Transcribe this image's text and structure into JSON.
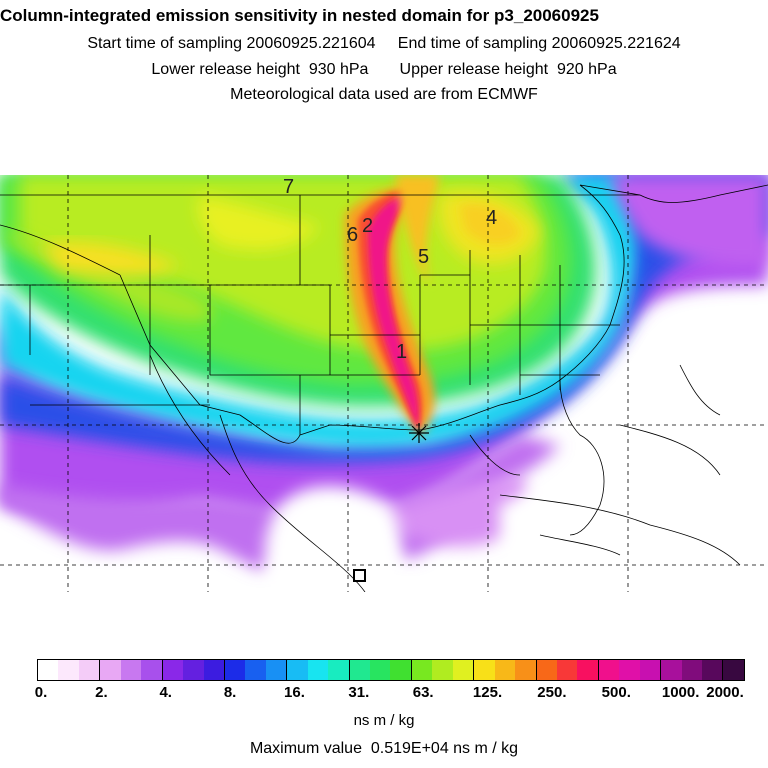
{
  "header": {
    "title": "Column-integrated emission sensitivity in nested domain for p3_20060925",
    "line1": "Start time of sampling 20060925.221604     End time of sampling 20060925.221624",
    "line2": "Lower release height  930 hPa       Upper release height  920 hPa",
    "line3": "Meteorological data used are from ECMWF"
  },
  "map": {
    "labels": [
      "7",
      "6",
      "2",
      "4",
      "5",
      "1"
    ],
    "release_marker": "star-marker",
    "receptor_marker": "square-marker"
  },
  "colorbar": {
    "colors": [
      "#ffffff",
      "#fce8fc",
      "#f4ccf8",
      "#e8a8f4",
      "#c878f0",
      "#a850ec",
      "#8a28e8",
      "#6420e0",
      "#3c1ce0",
      "#1c2ce8",
      "#1860f0",
      "#1890f4",
      "#18bcf4",
      "#18e4f0",
      "#18ecc0",
      "#20e890",
      "#28e460",
      "#40e030",
      "#78e820",
      "#b0ec20",
      "#e0f020",
      "#f8e018",
      "#f8b818",
      "#f89018",
      "#f86818",
      "#f83838",
      "#f81060",
      "#f0108c",
      "#e010a8",
      "#c810b0",
      "#a8109c",
      "#800c7c",
      "#58085c",
      "#380840"
    ],
    "ticks": [
      "0.",
      "2.",
      "4.",
      "8.",
      "16.",
      "31.",
      "63.",
      "125.",
      "250.",
      "500.",
      "1000.",
      "2000."
    ],
    "units": "ns m / kg"
  },
  "footer": {
    "max_value": "Maximum value  0.519E+04 ns m / kg"
  }
}
